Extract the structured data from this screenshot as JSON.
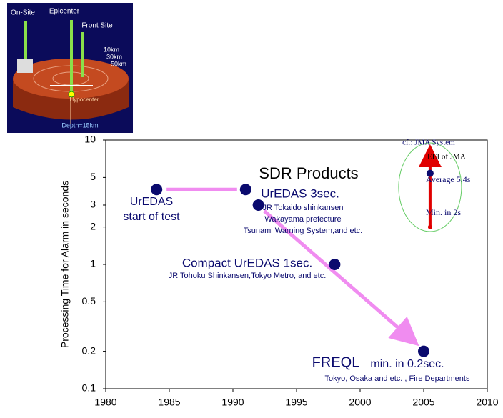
{
  "diagram": {
    "labels": [
      "On-Site",
      "Epicenter",
      "Front Site",
      "10km",
      "30km",
      "50km",
      "Hypocenter",
      "Depth=15km"
    ]
  },
  "chart_data": {
    "type": "scatter",
    "title": "SDR Products",
    "y_label": "Processing Time for Alarm in seconds",
    "log_y": true,
    "xlim": [
      1980,
      2010
    ],
    "xticks": [
      1980,
      1985,
      1990,
      1995,
      2000,
      2005,
      2010
    ],
    "ylim": [
      0.1,
      10
    ],
    "yticks": [
      0.1,
      0.2,
      0.5,
      1,
      2,
      3,
      5,
      10
    ],
    "series": [
      {
        "name": "SDR Products",
        "color": "#0a0a6e",
        "x": [
          1984,
          1991,
          1992,
          1998,
          2005
        ],
        "values": [
          4,
          4,
          3,
          1,
          0.2
        ]
      },
      {
        "name": "cf.: JMA System",
        "color": "#e00000",
        "x": [
          2005.5,
          2005.5
        ],
        "values": [
          5.4,
          2
        ]
      }
    ],
    "annotations": [
      "UrEDAS",
      "start of test",
      "UrEDAS  3sec.",
      "JR Tokaido shinkansen",
      "Wakayama prefecture",
      "Tsunami Warning System,and etc.",
      "Compact UrEDAS  1sec.",
      "JR Tohoku Shinkansen,Tokyo Metro, and etc.",
      "FREQL",
      "min. in 0.2sec.",
      "Tokyo, Osaka and etc. , Fire Departments",
      "EEI of JMA",
      "Average 5.4s",
      "Min. in 2s"
    ]
  }
}
